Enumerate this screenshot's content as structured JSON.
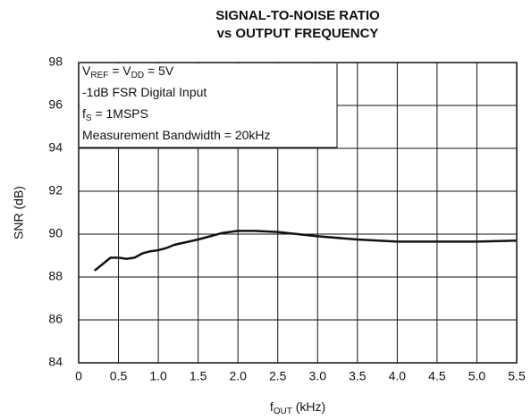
{
  "chart_data": {
    "type": "line",
    "title": [
      "SIGNAL-TO-NOISE RATIO",
      "vs OUTPUT FREQUENCY"
    ],
    "xlabel": [
      "f",
      "OUT",
      " (kHz)"
    ],
    "ylabel": "SNR (dB)",
    "annotations": [
      [
        "V",
        "REF",
        " = V",
        "DD",
        " = 5V"
      ],
      [
        "-1dB FSR Digital Input"
      ],
      [
        "f",
        "S",
        " = 1MSPS"
      ],
      [
        "Measurement Bandwidth = 20kHz"
      ]
    ],
    "x": [
      0.2,
      0.3,
      0.4,
      0.5,
      0.6,
      0.7,
      0.8,
      0.9,
      1.0,
      1.1,
      1.2,
      1.5,
      1.8,
      2.0,
      2.2,
      2.5,
      3.0,
      3.5,
      4.0,
      4.5,
      5.0,
      5.5
    ],
    "series": [
      {
        "color": "#111111",
        "values": [
          88.3,
          88.6,
          88.9,
          88.9,
          88.85,
          88.9,
          89.1,
          89.2,
          89.25,
          89.35,
          89.5,
          89.75,
          90.05,
          90.15,
          90.15,
          90.1,
          89.9,
          89.75,
          89.65,
          89.65,
          89.65,
          89.7
        ]
      }
    ],
    "xlim": [
      0,
      5.5
    ],
    "xticks": [
      0,
      0.5,
      {
        "value": 1,
        "label": "1.0"
      },
      1.5,
      {
        "value": 2,
        "label": "2.0"
      },
      2.5,
      {
        "value": 3,
        "label": "3.0"
      },
      3.5,
      {
        "value": 4,
        "label": "4.0"
      },
      4.5,
      {
        "value": 5,
        "label": "5.0"
      },
      5.5
    ],
    "ylim": [
      84,
      98
    ],
    "yticks": [
      84,
      86,
      88,
      90,
      92,
      94,
      96,
      98
    ],
    "grid": true
  }
}
